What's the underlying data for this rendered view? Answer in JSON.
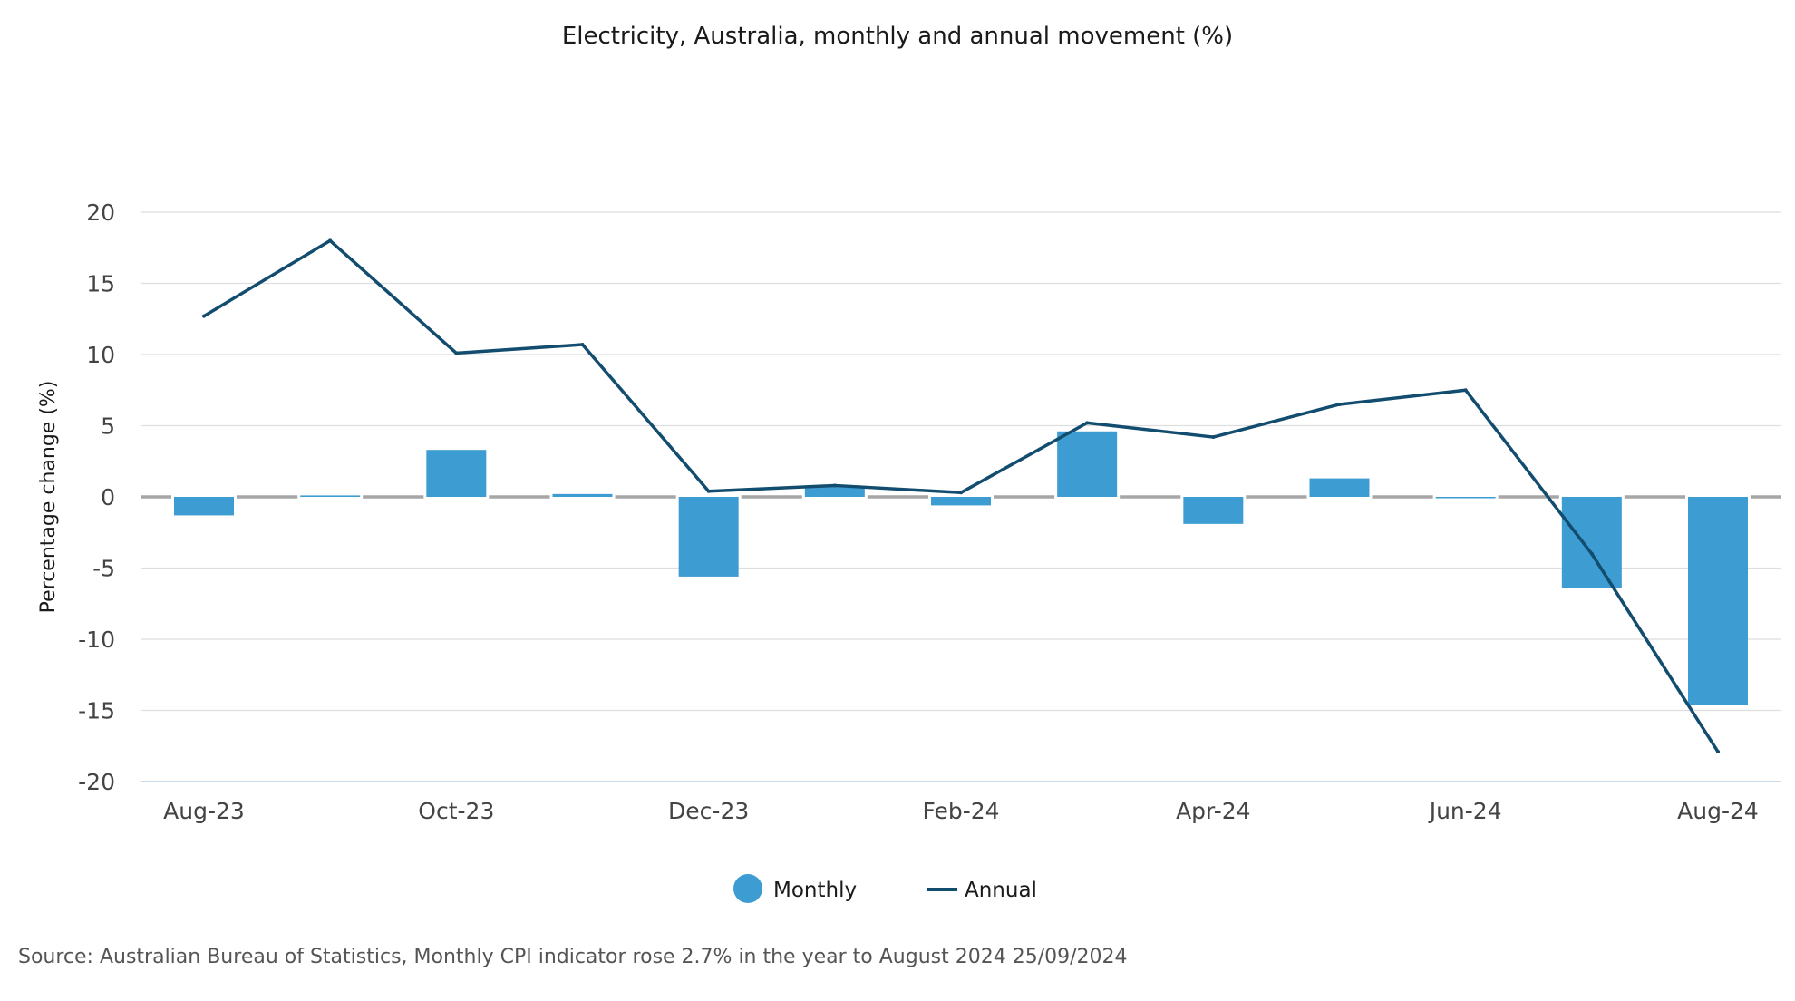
{
  "chart_data": {
    "type": "bar",
    "title": "Electricity, Australia, monthly and annual movement (%)",
    "ylabel": "Percentage change (%)",
    "xlabel": "",
    "ylim": [
      -20,
      20
    ],
    "yticks": [
      20,
      15,
      10,
      5,
      0,
      -5,
      -10,
      -15,
      -20
    ],
    "ytick_labels": [
      "20",
      "15",
      "10",
      "5",
      "0",
      "-5",
      "-10",
      "-15",
      "-20"
    ],
    "categories": [
      "Aug-23",
      "Sep-23",
      "Oct-23",
      "Nov-23",
      "Dec-23",
      "Jan-24",
      "Feb-24",
      "Mar-24",
      "Apr-24",
      "May-24",
      "Jun-24",
      "Jul-24",
      "Aug-24"
    ],
    "xtick_labels": [
      "Aug-23",
      "",
      "Oct-23",
      "",
      "Dec-23",
      "",
      "Feb-24",
      "",
      "Apr-24",
      "",
      "Jun-24",
      "",
      "Aug-24"
    ],
    "series": [
      {
        "name": "Monthly",
        "kind": "bar",
        "color": "#3d9dd3",
        "values": [
          -1.3,
          0.1,
          3.3,
          0.2,
          -5.6,
          0.7,
          -0.6,
          4.6,
          -1.9,
          1.3,
          0.0,
          -6.4,
          -14.6
        ]
      },
      {
        "name": "Annual",
        "kind": "line",
        "color": "#124d6f",
        "values": [
          12.7,
          18.0,
          10.1,
          10.7,
          0.4,
          0.8,
          0.3,
          5.2,
          4.2,
          6.5,
          7.5,
          -4.0,
          -17.9
        ]
      }
    ],
    "grid": true,
    "legend": "bottom-center"
  },
  "footer": {
    "source": "Source: Australian Bureau of Statistics, Monthly CPI indicator rose 2.7% in the year to August 2024 25/09/2024"
  }
}
